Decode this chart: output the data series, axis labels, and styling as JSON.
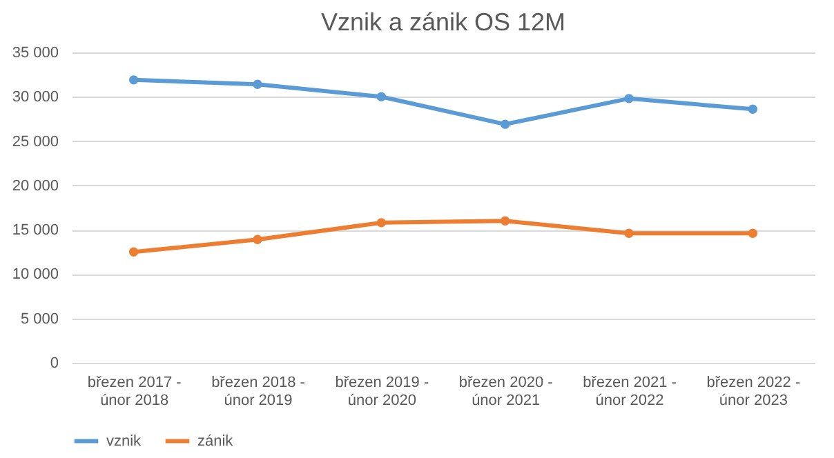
{
  "chart_data": {
    "type": "line",
    "title": "Vznik a zánik OS 12M",
    "categories": [
      "březen 2017 - únor 2018",
      "březen 2018 - únor 2019",
      "březen 2019 - únor 2020",
      "březen 2020 - únor 2021",
      "březen 2021 - únor 2022",
      "březen 2022 - únor 2023"
    ],
    "series": [
      {
        "name": "vznik",
        "color": "#5b9bd5",
        "values": [
          31900,
          31400,
          30000,
          26900,
          29800,
          28600
        ]
      },
      {
        "name": "zánik",
        "color": "#ed7d31",
        "values": [
          12500,
          13900,
          15800,
          16000,
          14600,
          14600
        ]
      }
    ],
    "ylim": [
      0,
      35000
    ],
    "yticks": [
      0,
      5000,
      10000,
      15000,
      20000,
      25000,
      30000,
      35000
    ],
    "grid": "y",
    "legend": "bottom",
    "marker": "circle"
  }
}
